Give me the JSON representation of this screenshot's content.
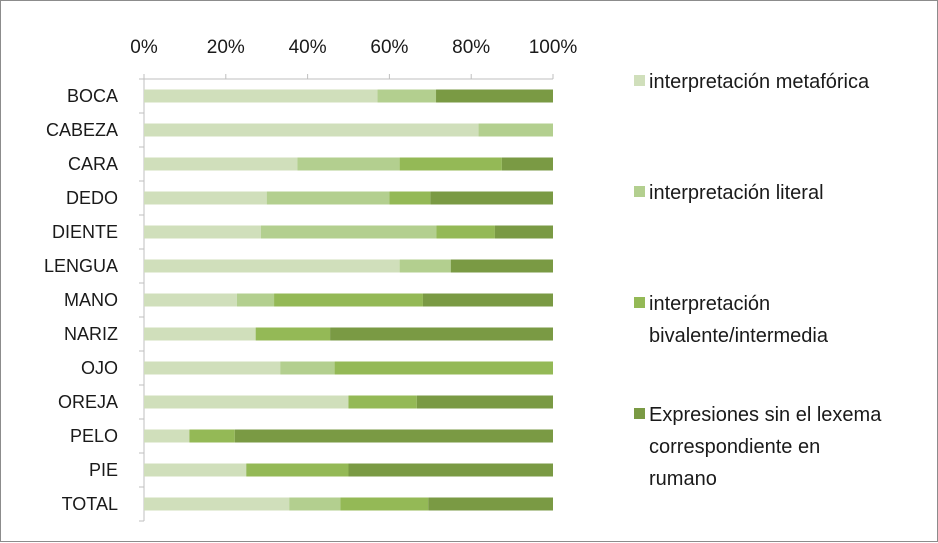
{
  "chart_data": {
    "type": "bar",
    "orientation": "horizontal",
    "stacked": "percent",
    "title": "",
    "xlabel": "",
    "ylabel": "",
    "xlim": [
      0,
      100
    ],
    "x_ticks": [
      "0%",
      "20%",
      "40%",
      "60%",
      "80%",
      "100%"
    ],
    "axis_position": "top",
    "grid": false,
    "legend_position": "right",
    "categories": [
      "BOCA",
      "CABEZA",
      "CARA",
      "DEDO",
      "DIENTE",
      "LENGUA",
      "MANO",
      "NARIZ",
      "OJO",
      "OREJA",
      "PELO",
      "PIE",
      "TOTAL"
    ],
    "series": [
      {
        "name": "interpretación metafórica",
        "color": "#d0dfbb",
        "values": [
          57.1,
          81.8,
          37.5,
          30.0,
          28.6,
          62.5,
          22.7,
          27.3,
          33.3,
          50.0,
          11.1,
          25.0,
          35.5
        ]
      },
      {
        "name": "interpretación literal",
        "color": "#b3cf8f",
        "values": [
          14.3,
          18.2,
          25.0,
          30.0,
          42.9,
          12.5,
          9.1,
          0.0,
          13.3,
          0.0,
          0.0,
          0.0,
          12.5
        ]
      },
      {
        "name": "interpretación bivalente/intermedia",
        "color": "#94b956",
        "values": [
          0.0,
          0.0,
          25.0,
          10.0,
          14.3,
          0.0,
          36.4,
          18.2,
          53.4,
          16.7,
          11.1,
          25.0,
          21.5
        ]
      },
      {
        "name": "Expresiones sin el lexema correspondiente en rumano",
        "color": "#7a9a44",
        "values": [
          28.6,
          0.0,
          12.5,
          30.0,
          14.2,
          25.0,
          31.8,
          54.5,
          0.0,
          33.3,
          77.8,
          50.0,
          30.5
        ]
      }
    ],
    "legend_lines": [
      [
        "interpretación metafórica"
      ],
      [
        "interpretación literal"
      ],
      [
        "interpretación",
        "bivalente/intermedia"
      ],
      [
        "Expresiones sin el lexema",
        "correspondiente en",
        "rumano"
      ]
    ]
  }
}
